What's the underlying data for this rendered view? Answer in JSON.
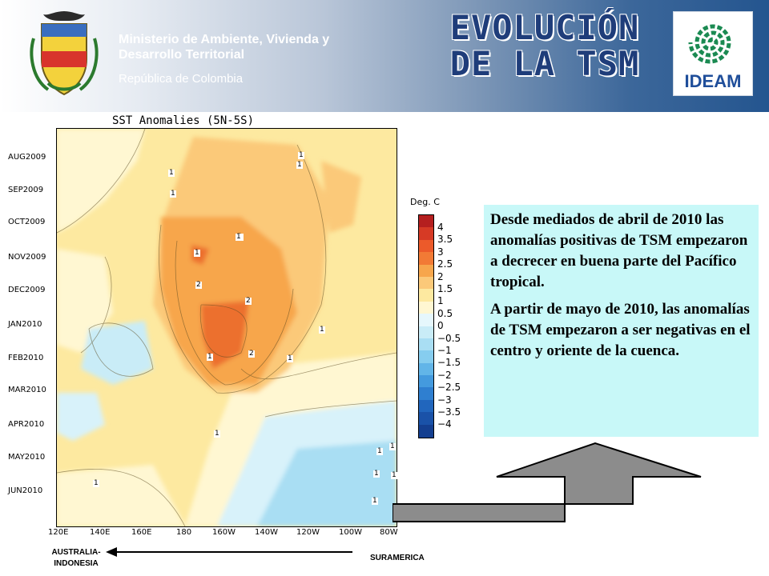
{
  "header": {
    "ministry": "Ministerio de Ambiente, Vivienda y Desarrollo Territorial",
    "republic": "República de Colombia",
    "title_line1": "EVOLUCIÓN",
    "title_line2": "DE LA TSM",
    "logo_text": "IDEAM"
  },
  "chart_data": {
    "type": "heatmap",
    "title": "SST Anomalies (5N-5S)",
    "x_ticks": [
      "120E",
      "140E",
      "160E",
      "180",
      "160W",
      "140W",
      "120W",
      "100W",
      "80W"
    ],
    "y_ticks": [
      "AUG2009",
      "SEP2009",
      "OCT2009",
      "NOV2009",
      "DEC2009",
      "JAN2010",
      "FEB2010",
      "MAR2010",
      "APR2010",
      "MAY2010",
      "JUN2010"
    ],
    "colorbar_title": "Deg. C",
    "colorbar_levels": [
      "4",
      "3.5",
      "3",
      "2.5",
      "2",
      "1.5",
      "1",
      "0.5",
      "0",
      "−0.5",
      "−1",
      "−1.5",
      "−2",
      "−2.5",
      "−3",
      "−3.5",
      "−4"
    ],
    "contour_labels": [
      "1",
      "1",
      "1",
      "1",
      "1",
      "1",
      "2",
      "1",
      "2",
      "1",
      "2",
      "1",
      "1",
      "1",
      "1",
      "1",
      "1",
      "1",
      "1",
      "1"
    ]
  },
  "colors": {
    "header_dark": "#24558f",
    "title": "#1f3d7a",
    "textbox_bg": "#c8f8f8",
    "arrow_fill": "#8c8c8c"
  },
  "description": {
    "paragraph1": "Desde mediados de abril de 2010 las anomalías positivas de TSM empezaron a decrecer en buena parte del Pacífico tropical.",
    "paragraph2": "A partir de mayo de 2010, las anomalías de TSM empezaron a ser negativas en el centro y oriente de la cuenca."
  },
  "bottom": {
    "left_label": "AUSTRALIA-\nINDONESIA",
    "right_label": "SURAMERICA"
  }
}
